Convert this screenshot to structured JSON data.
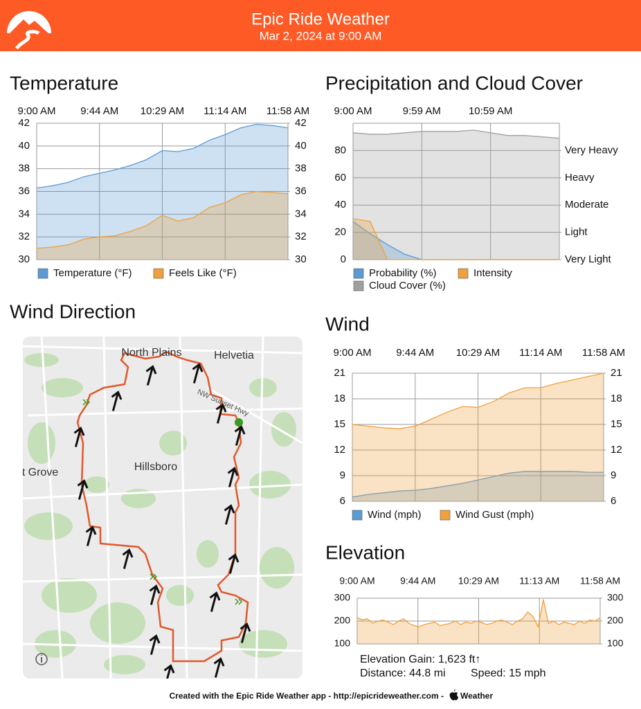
{
  "header": {
    "title": "Epic Ride Weather",
    "subtitle": "Mar 2, 2024 at 9:00 AM"
  },
  "chart_data": [
    {
      "type": "area",
      "title": "Temperature",
      "x_labels": [
        "9:00 AM",
        "9:44 AM",
        "10:29 AM",
        "11:14 AM",
        "11:58 AM"
      ],
      "ylim": [
        30,
        42
      ],
      "yticks": [
        30,
        32,
        34,
        36,
        38,
        40,
        42
      ],
      "y2lim": [
        30,
        42
      ],
      "y2ticks": [
        30,
        32,
        34,
        36,
        38,
        40,
        42
      ],
      "grid": true,
      "legend": true,
      "series": [
        {
          "name": "Temperature (°F)",
          "color": "#5b9bd5",
          "values": [
            36.3,
            36.5,
            36.8,
            37.3,
            37.6,
            37.9,
            38.3,
            38.8,
            39.6,
            39.5,
            39.8,
            40.5,
            41.0,
            41.6,
            41.9,
            41.8,
            41.6
          ]
        },
        {
          "name": "Feels Like (°F)",
          "color": "#f0a03c",
          "values": [
            31.0,
            31.1,
            31.3,
            31.8,
            32.0,
            32.1,
            32.5,
            33.0,
            33.9,
            33.4,
            33.7,
            34.6,
            35.0,
            35.7,
            36.0,
            35.9,
            35.8
          ]
        }
      ]
    },
    {
      "type": "area",
      "title": "Precipitation and Cloud Cover",
      "x_labels": [
        "9:00 AM",
        "9:59 AM",
        "10:59 AM",
        null
      ],
      "ylim": [
        0,
        100
      ],
      "yticks": [
        0,
        20,
        40,
        60,
        80
      ],
      "y2lim": [
        0,
        100
      ],
      "y2ticks": [
        {
          "value": 0,
          "label": "Very Light"
        },
        {
          "value": 20,
          "label": "Light"
        },
        {
          "value": 40,
          "label": "Moderate"
        },
        {
          "value": 60,
          "label": "Heavy"
        },
        {
          "value": 80,
          "label": "Very Heavy"
        }
      ],
      "grid": true,
      "legend": true,
      "series": [
        {
          "name": "Probability (%)",
          "color": "#5b9bd5",
          "values": [
            28,
            19,
            11,
            4,
            0,
            0,
            0,
            0,
            0,
            0,
            0,
            0,
            0
          ]
        },
        {
          "name": "Intensity",
          "color": "#f0a03c",
          "axis": "y2",
          "values": [
            30,
            28,
            0,
            0,
            0,
            0,
            0,
            0,
            0,
            0,
            0,
            0,
            0
          ]
        },
        {
          "name": "Cloud Cover (%)",
          "color": "#a0a0a0",
          "values": [
            93,
            92,
            92,
            93,
            94,
            94,
            94,
            95,
            93,
            91,
            91,
            90,
            89
          ]
        }
      ]
    },
    {
      "type": "area",
      "title": "Wind",
      "x_labels": [
        "9:00 AM",
        "9:44 AM",
        "10:29 AM",
        "11:14 AM",
        "11:58 AM"
      ],
      "ylim": [
        6,
        21
      ],
      "yticks": [
        6,
        9,
        12,
        15,
        18,
        21
      ],
      "y2lim": [
        6,
        21
      ],
      "y2ticks": [
        6,
        9,
        12,
        15,
        18,
        21
      ],
      "grid": true,
      "legend": true,
      "series": [
        {
          "name": "Wind (mph)",
          "color": "#5b9bd5",
          "values": [
            6.5,
            6.8,
            7.0,
            7.2,
            7.3,
            7.5,
            7.8,
            8.1,
            8.5,
            8.9,
            9.3,
            9.5,
            9.5,
            9.5,
            9.5,
            9.4,
            9.4
          ]
        },
        {
          "name": "Wind Gust (mph)",
          "color": "#f0a03c",
          "values": [
            15,
            14.8,
            14.6,
            14.5,
            14.8,
            15.6,
            16.4,
            17.1,
            17.0,
            17.7,
            18.7,
            19.3,
            19.3,
            19.8,
            20.2,
            20.6,
            21.0
          ]
        }
      ]
    },
    {
      "type": "area",
      "title": "Elevation",
      "x_labels": [
        "9:00 AM",
        "9:44 AM",
        "10:29 AM",
        "11:13 AM",
        "11:58 AM"
      ],
      "ylim": [
        100,
        300
      ],
      "yticks": [
        100,
        200,
        300
      ],
      "y2lim": [
        100,
        300
      ],
      "y2ticks": [
        100,
        200,
        300
      ],
      "grid": true,
      "legend": false,
      "series": [
        {
          "name": "Elevation",
          "color": "#f0a03c",
          "values": [
            215,
            205,
            210,
            190,
            200,
            205,
            195,
            185,
            200,
            210,
            190,
            180,
            175,
            185,
            190,
            195,
            180,
            185,
            190,
            200,
            185,
            195,
            190,
            200,
            195,
            185,
            190,
            200,
            205,
            195,
            185,
            200,
            210,
            240,
            220,
            175,
            295,
            190,
            200,
            185,
            195,
            190,
            185,
            200,
            190,
            205,
            200,
            215
          ]
        }
      ],
      "annotations": [
        "Elevation Gain: 1,623 ft↑",
        "Distance: 44.8 mi",
        "Speed: 15 mph"
      ]
    }
  ],
  "map": {
    "title": "Wind Direction",
    "labels": [
      "North Plains",
      "Helvetia",
      "NW Sunset Hwy",
      "Hillsboro",
      "t Grove"
    ]
  },
  "footer": {
    "text": "Created with the Epic Ride Weather app - http://epicrideweather.com -",
    "brand": "Weather"
  }
}
